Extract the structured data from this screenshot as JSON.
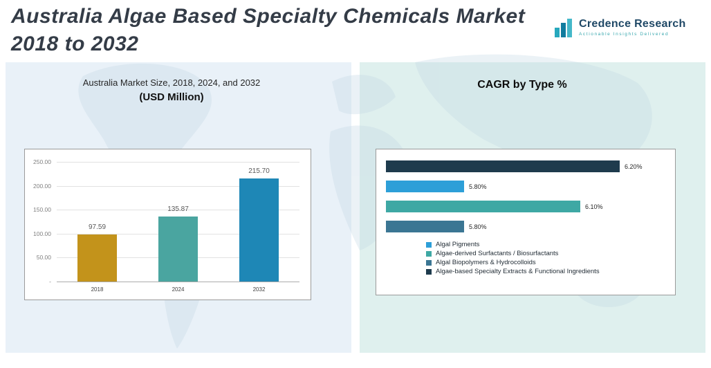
{
  "header": {
    "title_line1": "Australia Algae Based Specialty Chemicals Market",
    "title_line2": "2018 to 2032",
    "logo": {
      "brand": "Credence Research",
      "tagline": "Actionable Insights Delivered"
    }
  },
  "left_panel": {
    "chart_title": "Australia Market Size, 2018, 2024, and 2032",
    "chart_subtitle": "(USD Million)"
  },
  "right_panel": {
    "chart_title": "CAGR by Type %"
  },
  "chart_data": [
    {
      "type": "bar",
      "title": "Australia Market Size, 2018, 2024, and 2032 (USD Million)",
      "categories": [
        "2018",
        "2024",
        "2032"
      ],
      "values": [
        97.59,
        135.87,
        215.7
      ],
      "value_labels": [
        "97.59",
        "135.87",
        "215.70"
      ],
      "bar_colors": [
        "#C3931B",
        "#4AA5A0",
        "#1E87B6"
      ],
      "xlabel": "",
      "ylabel": "",
      "ylim": [
        0,
        250
      ],
      "y_ticks": [
        "250.00",
        "200.00",
        "150.00",
        "100.00",
        "50.00",
        "-"
      ],
      "grid": true,
      "legend_position": "none"
    },
    {
      "type": "bar",
      "orientation": "horizontal",
      "title": "CAGR by Type %",
      "xlim": [
        5.6,
        6.3
      ],
      "series": [
        {
          "name": "Algae-based Specialty Extracts & Functional Ingredients",
          "value": 6.2,
          "label": "6.20%",
          "color": "#1E3B4D"
        },
        {
          "name": "Algal Pigments",
          "value": 5.8,
          "label": "5.80%",
          "color": "#2D9FD8"
        },
        {
          "name": "Algae-derived Surfactants / Biosurfactants",
          "value": 6.1,
          "label": "6.10%",
          "color": "#3EA8A4"
        },
        {
          "name": "Algal Biopolymers & Hydrocolloids",
          "value": 5.8,
          "label": "5.80%",
          "color": "#3B7693"
        }
      ],
      "legend": [
        {
          "label": "Algal Pigments",
          "color": "#2D9FD8"
        },
        {
          "label": "Algae-derived Surfactants / Biosurfactants",
          "color": "#3EA8A4"
        },
        {
          "label": "Algal Biopolymers & Hydrocolloids",
          "color": "#3B7693"
        },
        {
          "label": "Algae-based Specialty Extracts & Functional Ingredients",
          "color": "#1E3B4D"
        }
      ],
      "legend_position": "bottom-inside"
    }
  ]
}
